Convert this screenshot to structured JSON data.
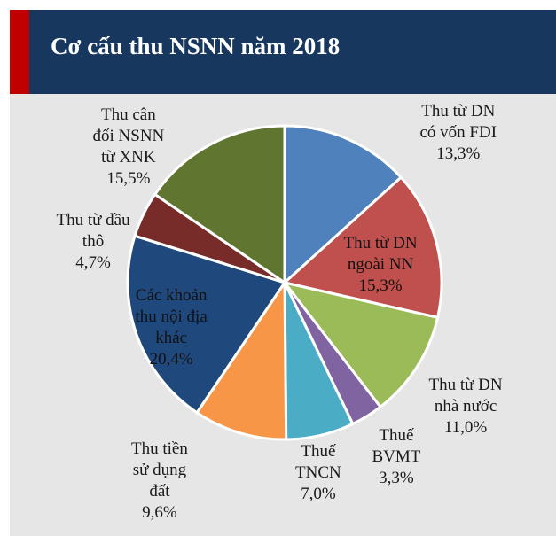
{
  "header": {
    "title": "Cơ cấu thu NSNN năm 2018",
    "background": "#17375e",
    "accent_color": "#c00000"
  },
  "chart_data": {
    "type": "pie",
    "title": "Cơ cấu thu NSNN năm 2018",
    "start_angle_deg": 90,
    "direction": "clockwise",
    "slices": [
      {
        "lines": [
          "Thu từ DN",
          "có vốn FDI"
        ],
        "value": 13.3,
        "value_label": "13,3%",
        "color": "#4f81bd"
      },
      {
        "lines": [
          "Thu từ DN",
          "ngoài NN"
        ],
        "value": 15.3,
        "value_label": "15,3%",
        "color": "#c0504d"
      },
      {
        "lines": [
          "Thu từ DN",
          "nhà nước"
        ],
        "value": 11.0,
        "value_label": "11,0%",
        "color": "#9bbb59"
      },
      {
        "lines": [
          "Thuế",
          "BVMT"
        ],
        "value": 3.3,
        "value_label": "3,3%",
        "color": "#8064a2"
      },
      {
        "lines": [
          "Thuế",
          "TNCN"
        ],
        "value": 7.0,
        "value_label": "7,0%",
        "color": "#4bacc6"
      },
      {
        "lines": [
          "Thu tiền",
          "sử dụng",
          "đất"
        ],
        "value": 9.6,
        "value_label": "9,6%",
        "color": "#f79646"
      },
      {
        "lines": [
          "Các khoản",
          "thu nội địa",
          "khác"
        ],
        "value": 20.4,
        "value_label": "20,4%",
        "color": "#1f497d"
      },
      {
        "lines": [
          "Thu từ dầu",
          "thô"
        ],
        "value": 4.7,
        "value_label": "4,7%",
        "color": "#772c2a"
      },
      {
        "lines": [
          "Thu cân",
          "đối NSNN",
          "từ XNK"
        ],
        "value": 15.5,
        "value_label": "15,5%",
        "color": "#5f7530"
      }
    ]
  }
}
